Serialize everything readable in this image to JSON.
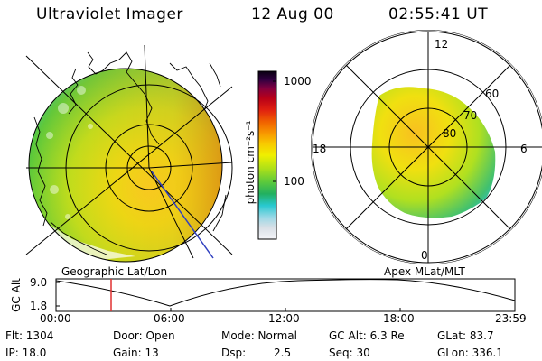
{
  "header": {
    "title": "Ultraviolet Imager",
    "date": "12 Aug 00",
    "time": "02:55:41 UT"
  },
  "colorbar": {
    "unit_label": "photon cm⁻²s⁻¹",
    "tick_1000": "1000",
    "tick_100": "100",
    "scale": "log",
    "colors": [
      "#f4f4f8",
      "#d8dfe6",
      "#9ad8e6",
      "#28c8d0",
      "#22b060",
      "#5cc93c",
      "#aee018",
      "#f0f000",
      "#f8c800",
      "#f89800",
      "#f06000",
      "#e02010",
      "#b80018",
      "#800040",
      "#300040",
      "#080010"
    ]
  },
  "geo_map": {
    "caption": "Geographic Lat/Lon",
    "accent_line_color": "#3040c0"
  },
  "polar_map": {
    "caption": "Apex MLat/MLT",
    "labels": {
      "mlt_12": "12",
      "mlt_18": "18",
      "mlt_6": "6",
      "mlt_0": "0",
      "lat_60": "60",
      "lat_70": "70",
      "lat_80": "80"
    }
  },
  "altitude_plot": {
    "axis_label": "GC Alt",
    "y_max": "9.0",
    "y_min": "1.8",
    "x_ticks": [
      "00:00",
      "06:00",
      "12:00",
      "18:00",
      "23:59"
    ],
    "current_time_marker_color": "#e03030"
  },
  "info": {
    "flt": "Flt: 1304",
    "ip": "IP: 18.0",
    "door": "Door: Open",
    "gain": "Gain: 13",
    "mode": "Mode: Normal",
    "dsp": "Dsp:",
    "dsp_value": "2.5",
    "gc_alt": "GC Alt: 6.3 Re",
    "seq": "Seq: 30",
    "glat": "GLat: 83.7",
    "glon": "GLon: 336.1"
  }
}
